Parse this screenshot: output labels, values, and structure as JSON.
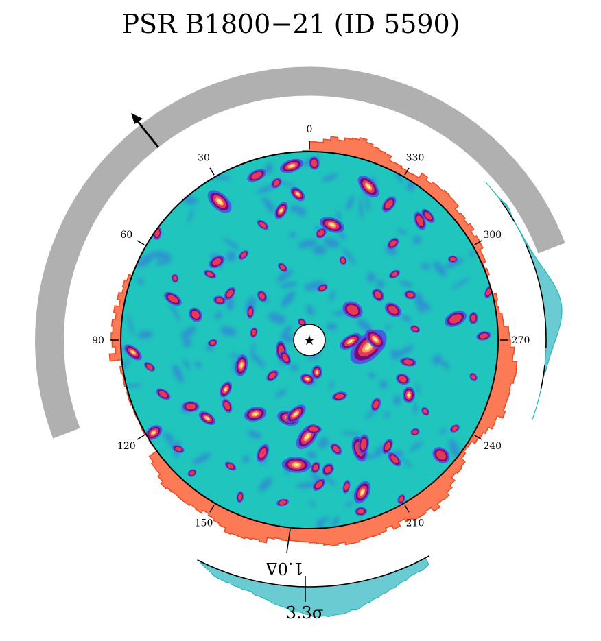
{
  "chart_data": {
    "type": "polar-heatmap",
    "title": "PSR B1800−21 (ID 5590)",
    "angle_ticks": [
      0,
      30,
      60,
      90,
      120,
      150,
      210,
      240,
      270,
      300,
      330
    ],
    "angle_tick_labels": [
      "0",
      "30",
      "60",
      "90",
      "120",
      "150",
      "210",
      "240",
      "270",
      "300",
      "330"
    ],
    "center_marker": "★",
    "annotations": {
      "delta_label": "1.0Δ",
      "sigma_label": "3.3σ"
    },
    "colors": {
      "map_background": "#20c5bd",
      "outer_histogram": "#fc7a55",
      "outer_histogram_edge": "#ee4a24",
      "side_histogram": "#6acbd3",
      "side_histogram_edge": "#27b7bf",
      "arc_band": "#b0b0b0",
      "hotspot_low": "#4b4ce8",
      "hotspot_mid": "#7a0a7a",
      "hotspot_high": "#e53a55",
      "hotspot_peak": "#fff090"
    }
  }
}
